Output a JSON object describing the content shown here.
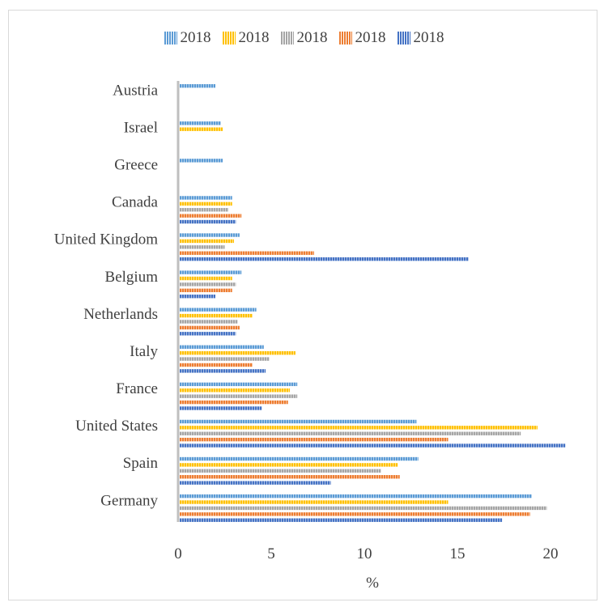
{
  "chart_data": {
    "type": "bar",
    "orientation": "horizontal",
    "categories": [
      "Austria",
      "Israel",
      "Greece",
      "Canada",
      "United Kingdom",
      "Belgium",
      "Netherlands",
      "Italy",
      "France",
      "United States",
      "Spain",
      "Germany"
    ],
    "series": [
      {
        "name": "2018",
        "color": "#5b9bd5",
        "values": [
          2.0,
          2.3,
          2.4,
          2.9,
          3.3,
          3.4,
          4.2,
          4.6,
          6.4,
          12.8,
          12.9,
          19.0
        ]
      },
      {
        "name": "2018",
        "color": "#ffc000",
        "values": [
          null,
          2.4,
          null,
          2.9,
          3.0,
          2.9,
          4.0,
          6.3,
          6.0,
          19.3,
          11.8,
          14.5
        ]
      },
      {
        "name": "2018",
        "color": "#a5a5a5",
        "values": [
          null,
          null,
          null,
          2.7,
          2.5,
          3.1,
          3.2,
          4.9,
          6.4,
          18.4,
          10.9,
          19.8
        ]
      },
      {
        "name": "2018",
        "color": "#ed7d31",
        "values": [
          null,
          null,
          null,
          3.4,
          7.3,
          2.9,
          3.3,
          4.0,
          5.9,
          14.5,
          11.9,
          18.9
        ]
      },
      {
        "name": "2018",
        "color": "#4472c4",
        "values": [
          null,
          null,
          null,
          3.1,
          15.6,
          2.0,
          3.1,
          4.7,
          4.5,
          20.8,
          8.2,
          17.4
        ]
      }
    ],
    "xlabel": "%",
    "ylabel": "",
    "xlim": [
      0,
      20
    ],
    "xticks": [
      0,
      5,
      10,
      15,
      20
    ],
    "grid": false,
    "legend_position": "top"
  }
}
